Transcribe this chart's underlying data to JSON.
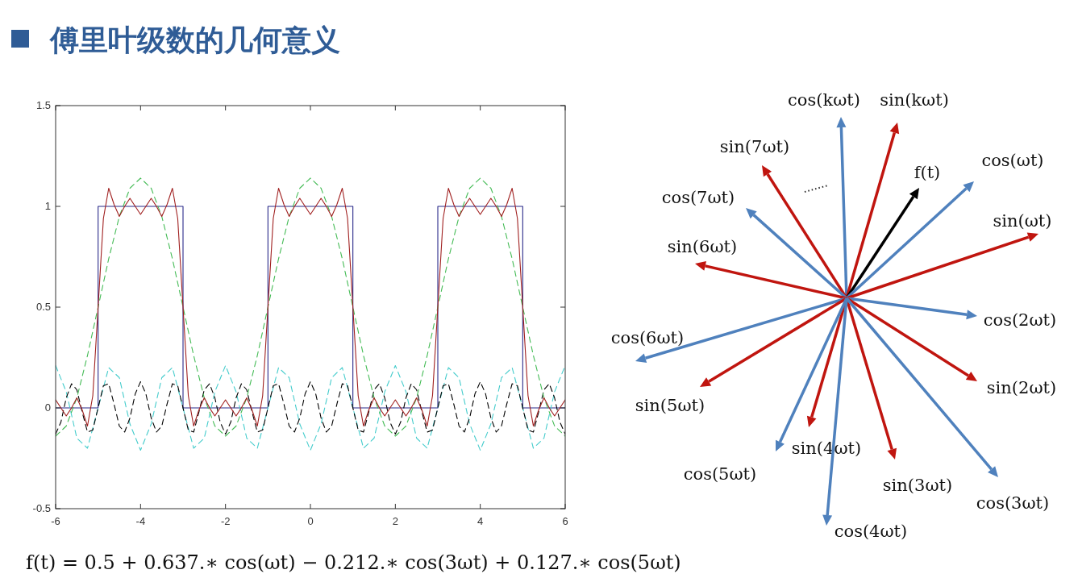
{
  "chart_data": [
    {
      "type": "line",
      "title": "傅里叶级数的几何意义",
      "xlim": [
        -6,
        6
      ],
      "ylim": [
        -0.5,
        1.5
      ],
      "xticks": [
        -6,
        -4,
        -2,
        0,
        2,
        4,
        6
      ],
      "yticks": [
        -0.5,
        0,
        0.5,
        1,
        1.5
      ],
      "annotations": [
        "f(t) = 0.5 + 0.637.∗ cos(ωt) − 0.212.∗ cos(3ωt) + 0.127.∗ cos(5ωt)"
      ],
      "series": [
        {
          "color": "#2a2a8a",
          "line_style": "solid",
          "x": [
            -6,
            -5,
            -5,
            -3,
            -3,
            -1,
            -1,
            1,
            1,
            3,
            3,
            5,
            5,
            6
          ],
          "values": [
            0,
            0,
            1,
            1,
            0,
            0,
            1,
            1,
            0,
            0,
            1,
            1,
            0,
            0
          ]
        },
        {
          "color": "#44cccc",
          "line_style": "dashed",
          "x": [
            -6,
            -5.75,
            -5.5,
            -5.25,
            -5,
            -4.75,
            -4.5,
            -4.25,
            -4,
            -3.75,
            -3.5,
            -3.25,
            -3,
            -2.75,
            -2.5,
            -2.25,
            -2,
            -1.75,
            -1.5,
            -1.25,
            -1,
            -0.75,
            -0.5,
            -0.25,
            0,
            0.25,
            0.5,
            0.75,
            1,
            1.25,
            1.5,
            1.75,
            2,
            2.25,
            2.5,
            2.75,
            3,
            3.25,
            3.5,
            3.75,
            4,
            4.25,
            4.5,
            4.75,
            5,
            5.25,
            5.5,
            5.75,
            6
          ],
          "values": [
            0.21,
            0.08,
            -0.15,
            -0.2,
            0,
            0.2,
            0.15,
            -0.08,
            -0.21,
            -0.08,
            0.15,
            0.2,
            0,
            -0.2,
            -0.15,
            0.08,
            0.21,
            0.08,
            -0.15,
            -0.2,
            0,
            0.2,
            0.15,
            -0.08,
            -0.21,
            -0.08,
            0.15,
            0.2,
            0,
            -0.2,
            -0.15,
            0.08,
            0.21,
            0.08,
            -0.15,
            -0.2,
            0,
            0.2,
            0.15,
            -0.08,
            -0.21,
            -0.08,
            0.15,
            0.2,
            0,
            -0.2,
            -0.15,
            0.08,
            0.21
          ]
        },
        {
          "color": "#000000",
          "line_style": "dashed",
          "x": [
            -6,
            -5.875,
            -5.75,
            -5.625,
            -5.5,
            -5.375,
            -5.25,
            -5.125,
            -5,
            -4.875,
            -4.75,
            -4.625,
            -4.5,
            -4.375,
            -4.25,
            -4.125,
            -4,
            -3.875,
            -3.75,
            -3.625,
            -3.5,
            -3.375,
            -3.25,
            -3.125,
            -3,
            -2.875,
            -2.75,
            -2.625,
            -2.5,
            -2.375,
            -2.25,
            -2.125,
            -2,
            -1.875,
            -1.75,
            -1.625,
            -1.5,
            -1.375,
            -1.25,
            -1.125,
            -1,
            -0.875,
            -0.75,
            -0.625,
            -0.5,
            -0.375,
            -0.25,
            -0.125,
            0,
            0.125,
            0.25,
            0.375,
            0.5,
            0.625,
            0.75,
            0.875,
            1,
            1.125,
            1.25,
            1.375,
            1.5,
            1.625,
            1.75,
            1.875,
            2,
            2.125,
            2.25,
            2.375,
            2.5,
            2.625,
            2.75,
            2.875,
            3,
            3.125,
            3.25,
            3.375,
            3.5,
            3.625,
            3.75,
            3.875,
            4,
            4.125,
            4.25,
            4.375,
            4.5,
            4.625,
            4.75,
            4.875,
            5,
            5.125,
            5.25,
            5.375,
            5.5,
            5.625,
            5.75,
            5.875,
            6
          ],
          "values": [
            -0.13,
            -0.07,
            0.05,
            0.12,
            0.09,
            -0.02,
            -0.12,
            -0.11,
            0,
            0.11,
            0.12,
            0.02,
            -0.09,
            -0.12,
            -0.05,
            0.07,
            0.13,
            0.07,
            -0.05,
            -0.12,
            -0.09,
            0.02,
            0.12,
            0.11,
            0,
            -0.11,
            -0.12,
            -0.02,
            0.09,
            0.12,
            0.05,
            -0.07,
            -0.13,
            -0.07,
            0.05,
            0.12,
            0.09,
            -0.02,
            -0.12,
            -0.11,
            0,
            0.11,
            0.12,
            0.02,
            -0.09,
            -0.12,
            -0.05,
            0.07,
            0.13,
            0.07,
            -0.05,
            -0.12,
            -0.09,
            0.02,
            0.12,
            0.11,
            0,
            -0.11,
            -0.12,
            -0.02,
            0.09,
            0.12,
            0.05,
            -0.07,
            -0.13,
            -0.07,
            0.05,
            0.12,
            0.09,
            -0.02,
            -0.12,
            -0.11,
            0,
            0.11,
            0.12,
            0.02,
            -0.09,
            -0.12,
            -0.05,
            0.07,
            0.13,
            0.07,
            -0.05,
            -0.12,
            -0.09,
            0.02,
            0.12,
            0.11,
            0,
            -0.11,
            -0.12,
            -0.02,
            0.09,
            0.12,
            0.05,
            -0.07,
            -0.13
          ]
        },
        {
          "color": "#44bb55",
          "line_style": "dashed",
          "x": [
            -6,
            -5.75,
            -5.5,
            -5.25,
            -5,
            -4.75,
            -4.5,
            -4.25,
            -4,
            -3.75,
            -3.5,
            -3.25,
            -3,
            -2.75,
            -2.5,
            -2.25,
            -2,
            -1.75,
            -1.5,
            -1.25,
            -1,
            -0.75,
            -0.5,
            -0.25,
            0,
            0.25,
            0.5,
            0.75,
            1,
            1.25,
            1.5,
            1.75,
            2,
            2.25,
            2.5,
            2.75,
            3,
            3.25,
            3.5,
            3.75,
            4,
            4.25,
            4.5,
            4.75,
            5,
            5.25,
            5.5,
            5.75,
            6
          ],
          "values": [
            -0.14,
            -0.09,
            0.05,
            0.26,
            0.5,
            0.74,
            0.95,
            1.09,
            1.14,
            1.09,
            0.95,
            0.74,
            0.5,
            0.26,
            0.05,
            -0.09,
            -0.14,
            -0.09,
            0.05,
            0.26,
            0.5,
            0.74,
            0.95,
            1.09,
            1.14,
            1.09,
            0.95,
            0.74,
            0.5,
            0.26,
            0.05,
            -0.09,
            -0.14,
            -0.09,
            0.05,
            0.26,
            0.5,
            0.74,
            0.95,
            1.09,
            1.14,
            1.09,
            0.95,
            0.74,
            0.5,
            0.26,
            0.05,
            -0.09,
            -0.14
          ]
        },
        {
          "color": "#a02020",
          "line_style": "solid",
          "x": [
            -6,
            -5.875,
            -5.75,
            -5.625,
            -5.5,
            -5.375,
            -5.25,
            -5.125,
            -5,
            -4.875,
            -4.75,
            -4.625,
            -4.5,
            -4.375,
            -4.25,
            -4.125,
            -4,
            -3.875,
            -3.75,
            -3.625,
            -3.5,
            -3.375,
            -3.25,
            -3.125,
            -3,
            -2.875,
            -2.75,
            -2.625,
            -2.5,
            -2.375,
            -2.25,
            -2.125,
            -2,
            -1.875,
            -1.75,
            -1.625,
            -1.5,
            -1.375,
            -1.25,
            -1.125,
            -1,
            -0.875,
            -0.75,
            -0.625,
            -0.5,
            -0.375,
            -0.25,
            -0.125,
            0,
            0.125,
            0.25,
            0.375,
            0.5,
            0.625,
            0.75,
            0.875,
            1,
            1.125,
            1.25,
            1.375,
            1.5,
            1.625,
            1.75,
            1.875,
            2,
            2.125,
            2.25,
            2.375,
            2.5,
            2.625,
            2.75,
            2.875,
            3,
            3.125,
            3.25,
            3.375,
            3.5,
            3.625,
            3.75,
            3.875,
            4,
            4.125,
            4.25,
            4.375,
            4.5,
            4.625,
            4.75,
            4.875,
            5,
            5.125,
            5.25,
            5.375,
            5.5,
            5.625,
            5.75,
            5.875,
            6
          ],
          "values": [
            0.04,
            0,
            -0.04,
            0,
            0.05,
            -0.01,
            -0.09,
            0.06,
            0.5,
            0.94,
            1.09,
            1.01,
            0.95,
            1,
            1.04,
            1,
            0.96,
            1,
            1.04,
            1,
            0.95,
            1.01,
            1.09,
            0.94,
            0.5,
            0.06,
            -0.09,
            -0.01,
            0.05,
            0,
            -0.04,
            0,
            0.04,
            0,
            -0.04,
            0,
            0.05,
            -0.01,
            -0.09,
            0.06,
            0.5,
            0.94,
            1.09,
            1.01,
            0.95,
            1,
            1.04,
            1,
            0.96,
            1,
            1.04,
            1,
            0.95,
            1.01,
            1.09,
            0.94,
            0.5,
            0.06,
            -0.09,
            -0.01,
            0.05,
            0,
            -0.04,
            0,
            0.04,
            0,
            -0.04,
            0,
            0.05,
            -0.01,
            -0.09,
            0.06,
            0.5,
            0.94,
            1.09,
            1.01,
            0.95,
            1,
            1.04,
            1,
            0.96,
            1,
            1.04,
            1,
            0.95,
            1.01,
            1.09,
            0.94,
            0.5,
            0.06,
            -0.09,
            -0.01,
            0.05,
            0,
            -0.04,
            0,
            0.04
          ]
        }
      ]
    },
    {
      "type": "other",
      "annotations": [
        "cos(kωt)",
        "sin(kωt)",
        "sin(7ωt)",
        "f(t)",
        "cos(ωt)",
        "cos(7ωt)",
        "sin(ωt)",
        "sin(6ωt)",
        "cos(2ωt)",
        "cos(6ωt)",
        "sin(2ωt)",
        "sin(5ωt)",
        "sin(4ωt)",
        "cos(5ωt)",
        "sin(3ωt)",
        "cos(3ωt)",
        "cos(4ωt)"
      ]
    }
  ]
}
